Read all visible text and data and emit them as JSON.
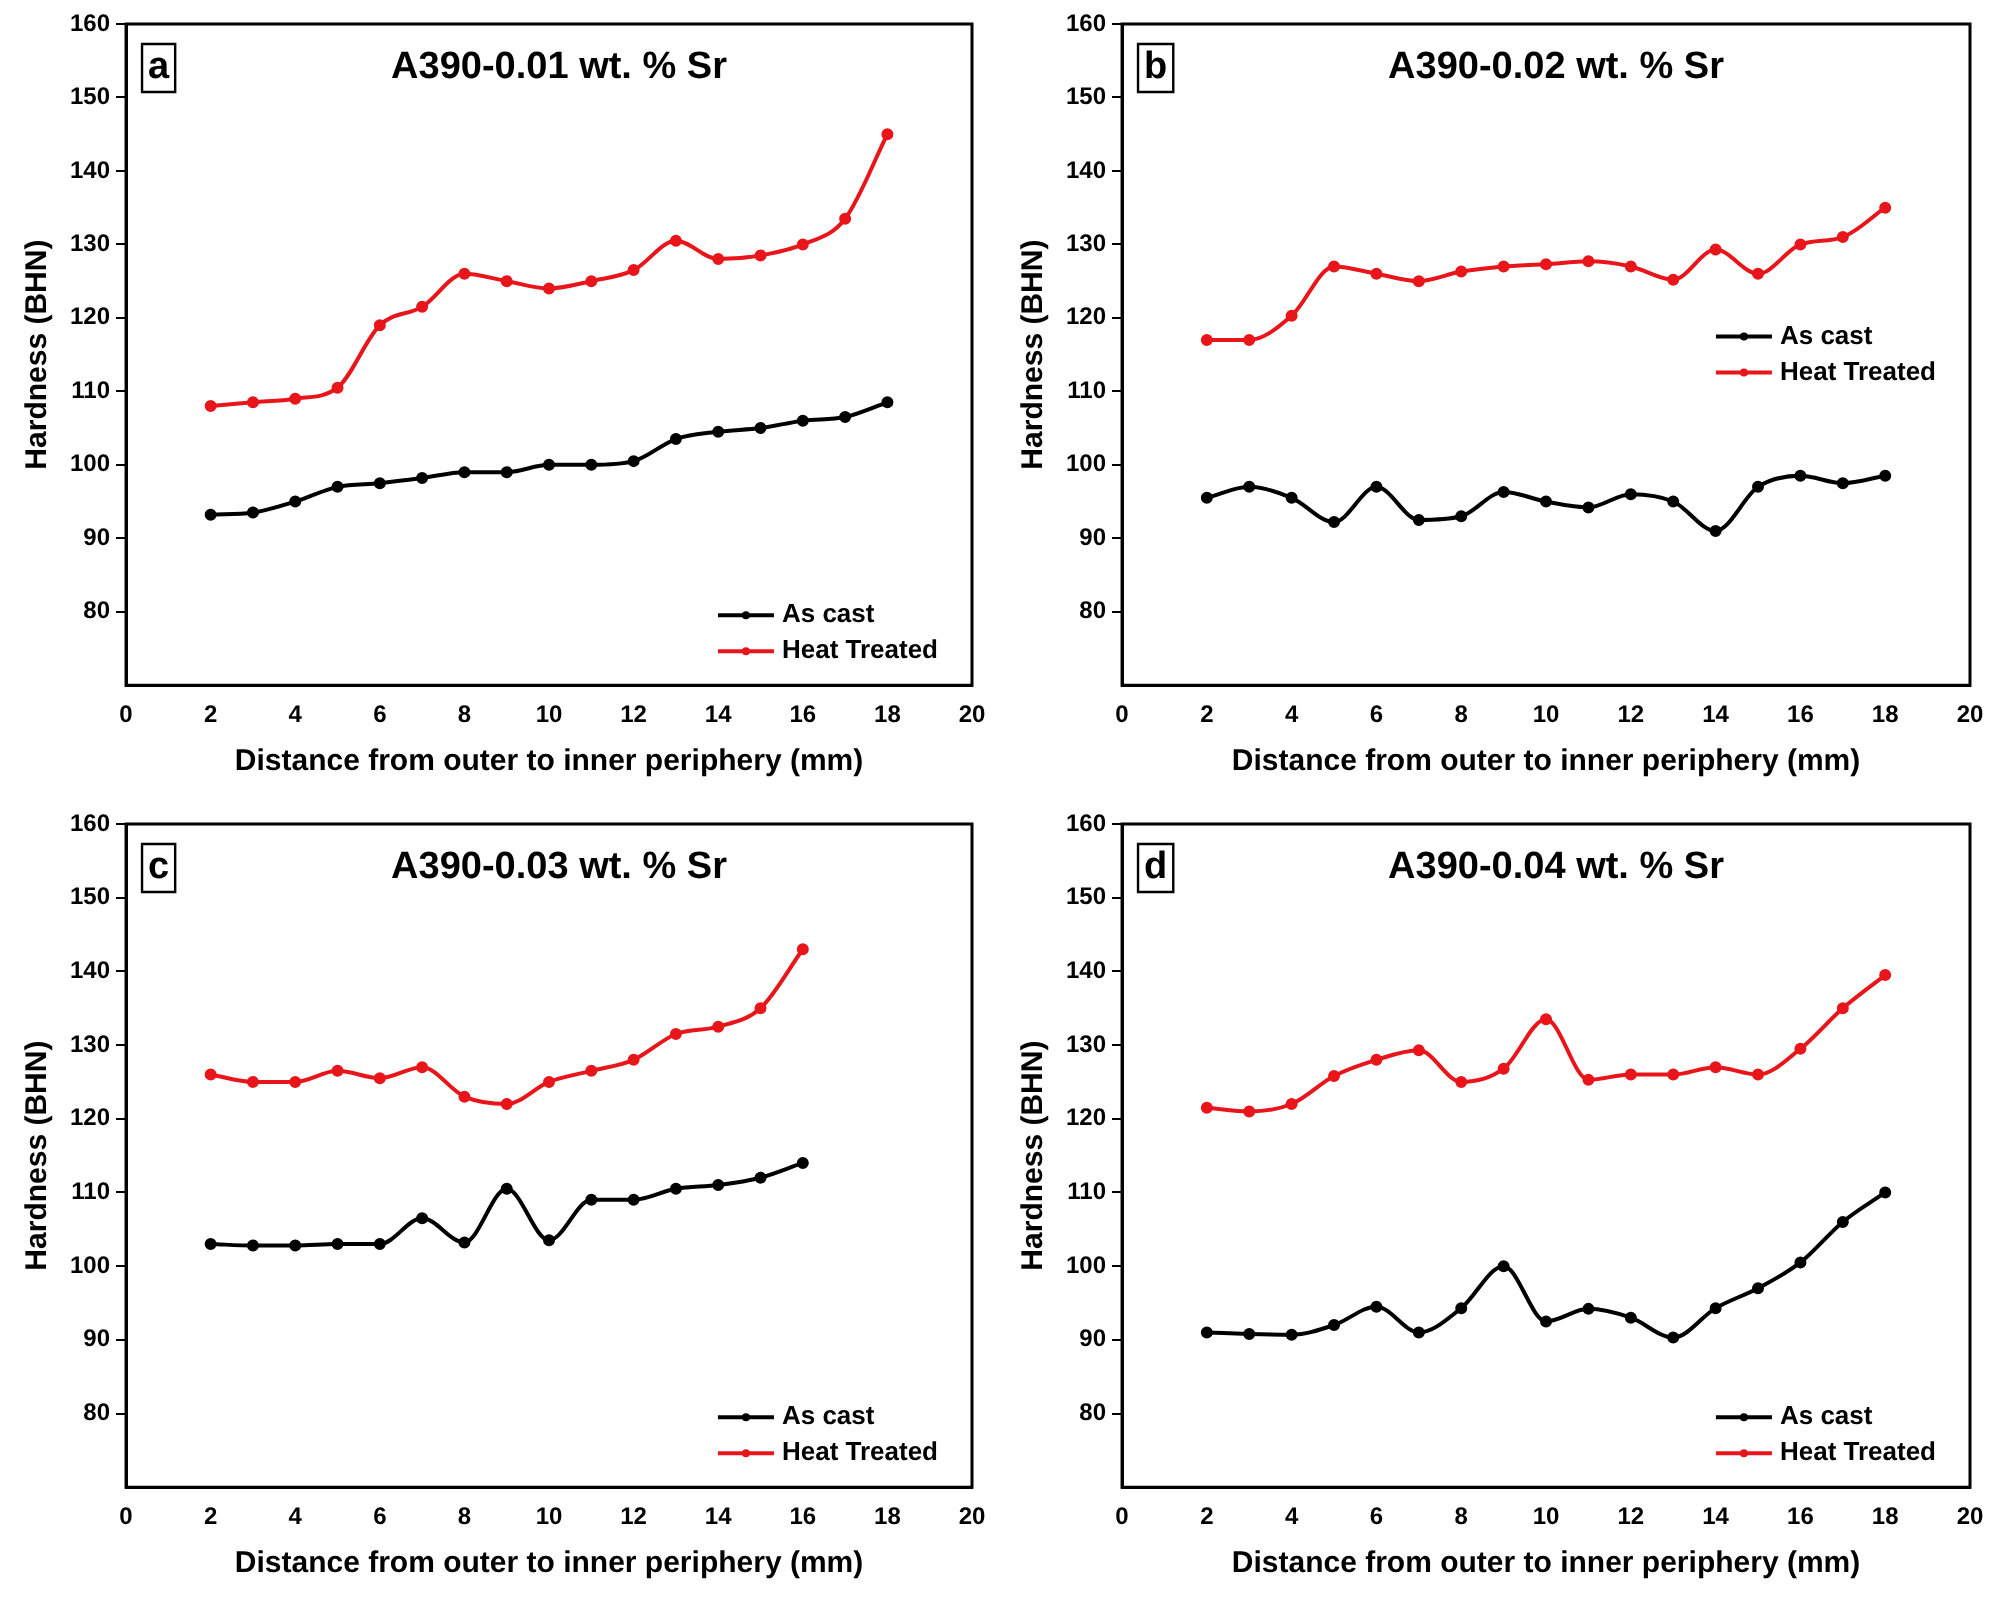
{
  "chart_data": [
    {
      "type": "line",
      "title": "A390-0.01 wt. % Sr",
      "annotations": [
        "a"
      ],
      "xlabel": "Distance from outer to inner periphery (mm)",
      "ylabel": "Hardness (BHN)",
      "x": [
        2,
        3,
        4,
        5,
        6,
        7,
        8,
        9,
        10,
        11,
        12,
        13,
        14,
        15,
        16,
        17,
        18
      ],
      "xlim": [
        0,
        20
      ],
      "xticks": [
        0,
        2,
        4,
        6,
        8,
        10,
        12,
        14,
        16,
        18,
        20
      ],
      "ylim": [
        70,
        160
      ],
      "yticks": [
        80,
        90,
        100,
        110,
        120,
        130,
        140,
        150,
        160
      ],
      "marker": "circle",
      "legend": "bottom right",
      "series": [
        {
          "name": "As cast",
          "color": "#000000",
          "values": [
            93.2,
            93.5,
            95,
            97,
            97.5,
            98.2,
            99,
            99,
            100,
            100,
            100.5,
            103.5,
            104.5,
            105,
            106,
            106.5,
            108.5
          ]
        },
        {
          "name": "Heat Treated",
          "color": "#e8161b",
          "values": [
            108,
            108.5,
            109,
            110.5,
            119,
            121.5,
            126,
            125,
            124,
            125,
            126.5,
            130.5,
            128,
            128.5,
            130,
            133.5,
            145
          ]
        }
      ]
    },
    {
      "type": "line",
      "title": "A390-0.02 wt. % Sr",
      "annotations": [
        "b"
      ],
      "xlabel": "Distance from outer to inner periphery (mm)",
      "ylabel": "Hardness (BHN)",
      "x": [
        2,
        3,
        4,
        5,
        6,
        7,
        8,
        9,
        10,
        11,
        12,
        13,
        14,
        15,
        16,
        17,
        18
      ],
      "xlim": [
        0,
        20
      ],
      "xticks": [
        0,
        2,
        4,
        6,
        8,
        10,
        12,
        14,
        16,
        18,
        20
      ],
      "ylim": [
        70,
        160
      ],
      "yticks": [
        80,
        90,
        100,
        110,
        120,
        130,
        140,
        150,
        160
      ],
      "marker": "circle",
      "legend": "right",
      "series": [
        {
          "name": "As cast",
          "color": "#000000",
          "values": [
            95.5,
            97,
            95.5,
            92.2,
            97,
            92.5,
            93,
            96.3,
            95,
            94.2,
            96,
            95,
            91,
            97,
            98.5,
            97.5,
            98.5
          ]
        },
        {
          "name": "Heat Treated",
          "color": "#e8161b",
          "values": [
            117,
            117,
            120.3,
            127,
            126,
            125,
            126.3,
            127,
            127.3,
            127.7,
            127,
            125.2,
            129.3,
            126,
            130,
            131,
            135
          ]
        }
      ]
    },
    {
      "type": "line",
      "title": "A390-0.03 wt. % Sr",
      "annotations": [
        "c"
      ],
      "xlabel": "Distance from outer to inner periphery (mm)",
      "ylabel": "Hardness (BHN)",
      "x": [
        2,
        3,
        4,
        5,
        6,
        7,
        8,
        9,
        10,
        11,
        12,
        13,
        14,
        15,
        16
      ],
      "xlim": [
        0,
        20
      ],
      "xticks": [
        0,
        2,
        4,
        6,
        8,
        10,
        12,
        14,
        16,
        18,
        20
      ],
      "ylim": [
        70,
        160
      ],
      "yticks": [
        80,
        90,
        100,
        110,
        120,
        130,
        140,
        150,
        160
      ],
      "marker": "circle",
      "legend": "bottom right",
      "series": [
        {
          "name": "As cast",
          "color": "#000000",
          "values": [
            103,
            102.8,
            102.8,
            103,
            103,
            106.5,
            103.2,
            110.5,
            103.5,
            109,
            109,
            110.5,
            111,
            112,
            114
          ]
        },
        {
          "name": "Heat Treated",
          "color": "#e8161b",
          "values": [
            126,
            125,
            125,
            126.5,
            125.5,
            127,
            123,
            122,
            125,
            126.5,
            128,
            131.5,
            132.5,
            135,
            143
          ]
        }
      ]
    },
    {
      "type": "line",
      "title": "A390-0.04 wt. % Sr",
      "annotations": [
        "d"
      ],
      "xlabel": "Distance from outer to inner periphery (mm)",
      "ylabel": "Hardness (BHN)",
      "x": [
        2,
        3,
        4,
        5,
        6,
        7,
        8,
        9,
        10,
        11,
        12,
        13,
        14,
        15,
        16,
        17,
        18
      ],
      "xlim": [
        0,
        20
      ],
      "xticks": [
        0,
        2,
        4,
        6,
        8,
        10,
        12,
        14,
        16,
        18,
        20
      ],
      "ylim": [
        70,
        160
      ],
      "yticks": [
        80,
        90,
        100,
        110,
        120,
        130,
        140,
        150,
        160
      ],
      "marker": "circle",
      "legend": "bottom right",
      "series": [
        {
          "name": "As cast",
          "color": "#000000",
          "values": [
            91,
            90.8,
            90.7,
            92,
            94.5,
            91,
            94.3,
            100,
            92.5,
            94.2,
            93,
            90.3,
            94.3,
            97,
            100.5,
            106,
            110
          ]
        },
        {
          "name": "Heat Treated",
          "color": "#e8161b",
          "values": [
            121.5,
            121,
            122,
            125.8,
            128,
            129.3,
            125,
            126.8,
            133.5,
            125.3,
            126,
            126,
            127,
            126,
            129.5,
            135,
            139.5
          ]
        }
      ]
    }
  ]
}
